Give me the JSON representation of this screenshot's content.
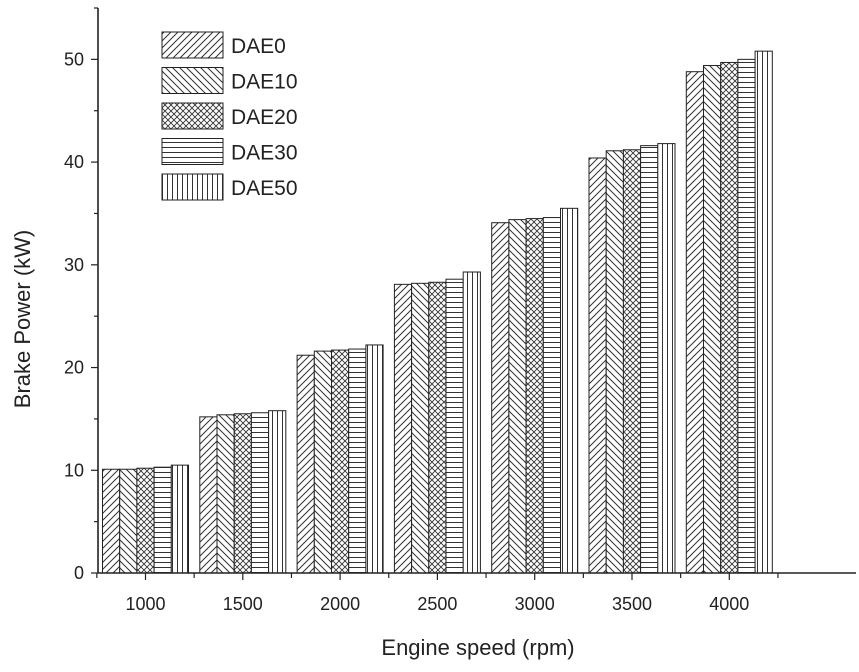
{
  "chart_data": {
    "type": "bar",
    "title": "",
    "xlabel": "Engine speed (rpm)",
    "ylabel": "Brake Power (kW)",
    "categories": [
      "1000",
      "1500",
      "2000",
      "2500",
      "3000",
      "3500",
      "4000"
    ],
    "ylim": [
      0,
      55
    ],
    "yticks": [
      0,
      10,
      20,
      30,
      40,
      50
    ],
    "grid": false,
    "legend_position": "top-left",
    "series": [
      {
        "name": "DAE0",
        "pattern": "diagonal-up",
        "values": [
          10.1,
          15.2,
          21.2,
          28.1,
          34.1,
          40.4,
          48.8
        ]
      },
      {
        "name": "DAE10",
        "pattern": "diagonal-down",
        "values": [
          10.1,
          15.4,
          21.6,
          28.2,
          34.4,
          41.1,
          49.4
        ]
      },
      {
        "name": "DAE20",
        "pattern": "crosshatch",
        "values": [
          10.2,
          15.5,
          21.7,
          28.3,
          34.5,
          41.2,
          49.7
        ]
      },
      {
        "name": "DAE30",
        "pattern": "horizontal",
        "values": [
          10.3,
          15.6,
          21.8,
          28.6,
          34.6,
          41.6,
          50.0
        ]
      },
      {
        "name": "DAE50",
        "pattern": "vertical",
        "values": [
          10.5,
          15.8,
          22.2,
          29.3,
          35.5,
          41.8,
          50.8
        ]
      }
    ]
  }
}
